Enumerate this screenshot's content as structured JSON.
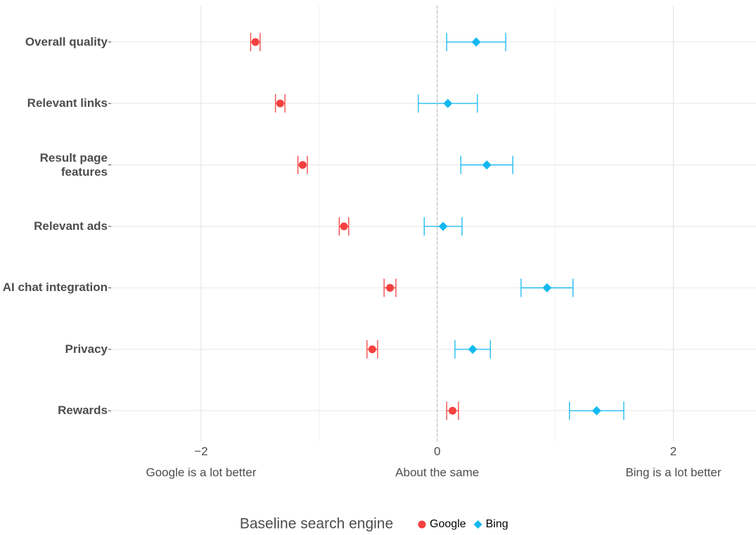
{
  "chart_data": {
    "type": "dot-errorbar",
    "categories": [
      "Overall quality",
      "Relevant links",
      "Result page features",
      "Relevant ads",
      "AI chat integration",
      "Privacy",
      "Rewards"
    ],
    "series": [
      {
        "name": "Google",
        "color": "#f4403f",
        "marker": "circle",
        "values": [
          -1.54,
          -1.33,
          -1.14,
          -0.79,
          -0.4,
          -0.55,
          0.13
        ],
        "errors": [
          0.04,
          0.04,
          0.04,
          0.04,
          0.05,
          0.045,
          0.05
        ]
      },
      {
        "name": "Bing",
        "color": "#12b8f0",
        "marker": "diamond",
        "values": [
          0.33,
          0.09,
          0.42,
          0.05,
          0.93,
          0.3,
          1.35
        ],
        "errors": [
          0.25,
          0.25,
          0.22,
          0.16,
          0.22,
          0.15,
          0.23
        ]
      }
    ],
    "xlim": [
      -2.78,
      2.7
    ],
    "xticks": [
      {
        "value": -2,
        "label": "−2",
        "caption": "Google is a lot better"
      },
      {
        "value": 0,
        "label": "0",
        "caption": "About the same"
      },
      {
        "value": 2,
        "label": "2",
        "caption": "Bing is a lot better"
      }
    ],
    "xminor_grid": [
      -1,
      1
    ],
    "grid": true,
    "legend_title": "Baseline search engine",
    "legend_position": "bottom"
  }
}
